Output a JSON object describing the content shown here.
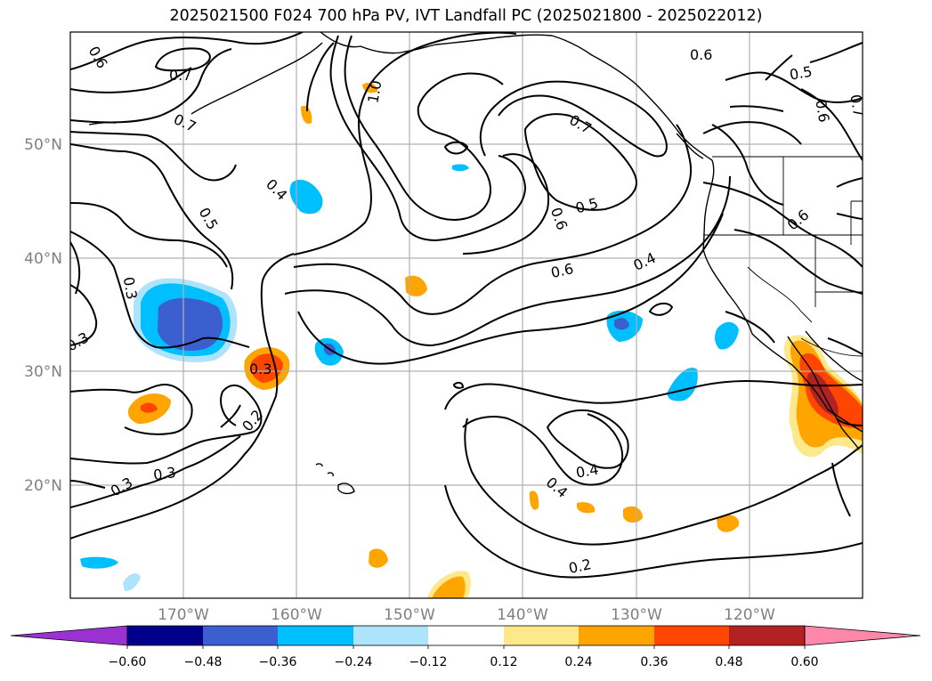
{
  "title": "2025021500 F024 700 hPa PV, IVT Landfall PC (2025021800 - 2025022012)",
  "lat_labels": [
    "50°N",
    "40°N",
    "30°N",
    "20°N"
  ],
  "lon_labels": [
    "170°W",
    "160°W",
    "150°W",
    "140°W",
    "130°W",
    "120°W"
  ],
  "contour_labels": [
    "0.6",
    "0.7",
    "0.7",
    "0.4",
    "0.5",
    "0.3",
    "0.3",
    "0.3",
    "0.2",
    "0.3",
    "0.3",
    "1.0",
    "0.7",
    "0.6",
    "0.5",
    "0.6",
    "0.4",
    "0.6",
    "0.5",
    "0.6",
    "0.7",
    "0.6",
    "0.4",
    "0.4",
    "0.2"
  ],
  "colorbar": {
    "tick_labels": [
      "−0.60",
      "−0.48",
      "−0.36",
      "−0.24",
      "−0.12",
      "0.12",
      "0.24",
      "0.36",
      "0.48",
      "0.60"
    ],
    "colors": [
      "#9a31d0",
      "#00008b",
      "#3c5fd0",
      "#00bfff",
      "#ade3fb",
      "#ffffff",
      "#fee88c",
      "#ffa500",
      "#ff4500",
      "#b22222",
      "#ff88aa"
    ]
  },
  "shading_colors": {
    "neg_light": "#ade3fb",
    "neg_mid": "#00bfff",
    "neg_strong": "#3c5fd0",
    "pos_light": "#fee88c",
    "pos_mid": "#ffa500",
    "pos_strong": "#ff4500",
    "pos_max": "#b22222"
  }
}
